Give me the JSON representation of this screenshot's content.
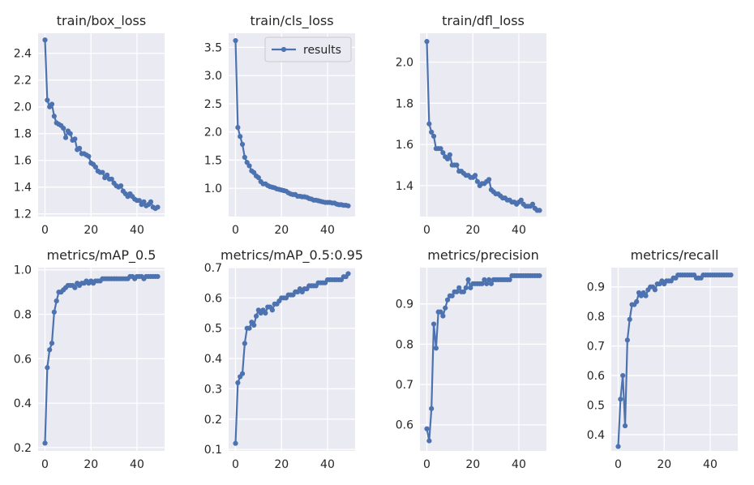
{
  "legend_label": "results",
  "colors": {
    "line": "#4c72b0",
    "panel_bg": "#eaeaf2",
    "grid": "#ffffff",
    "text": "#262626"
  },
  "chart_data": [
    {
      "type": "line",
      "title": "train/box_loss",
      "legend": false,
      "xlim": [
        -3,
        52
      ],
      "ylim": [
        1.18,
        2.55
      ],
      "xticks": [
        0,
        20,
        40
      ],
      "xtick_labels": [
        "0",
        "20",
        "40"
      ],
      "yticks": [
        1.2,
        1.4,
        1.6,
        1.8,
        2.0,
        2.2,
        2.4
      ],
      "ytick_labels": [
        "1.2",
        "1.4",
        "1.6",
        "1.8",
        "2.0",
        "2.2",
        "2.4"
      ],
      "series": [
        {
          "x": [
            0,
            1,
            2,
            3,
            4,
            5,
            6,
            7,
            8,
            9,
            10,
            11,
            12,
            13,
            14,
            15,
            16,
            17,
            18,
            19,
            20,
            21,
            22,
            23,
            24,
            25,
            26,
            27,
            28,
            29,
            30,
            31,
            32,
            33,
            34,
            35,
            36,
            37,
            38,
            39,
            40,
            41,
            42,
            43,
            44,
            45,
            46,
            47,
            48,
            49
          ],
          "y": [
            2.5,
            2.05,
            2.0,
            2.02,
            1.93,
            1.88,
            1.87,
            1.86,
            1.84,
            1.77,
            1.82,
            1.8,
            1.75,
            1.76,
            1.68,
            1.69,
            1.65,
            1.65,
            1.64,
            1.63,
            1.58,
            1.57,
            1.55,
            1.52,
            1.51,
            1.51,
            1.47,
            1.49,
            1.46,
            1.46,
            1.43,
            1.41,
            1.4,
            1.41,
            1.37,
            1.35,
            1.33,
            1.35,
            1.33,
            1.31,
            1.3,
            1.3,
            1.27,
            1.29,
            1.26,
            1.27,
            1.29,
            1.25,
            1.24,
            1.25
          ]
        }
      ]
    },
    {
      "type": "line",
      "title": "train/cls_loss",
      "legend": true,
      "xlim": [
        -3,
        52
      ],
      "ylim": [
        0.5,
        3.75
      ],
      "xticks": [
        0,
        20,
        40
      ],
      "xtick_labels": [
        "0",
        "20",
        "40"
      ],
      "yticks": [
        1.0,
        1.5,
        2.0,
        2.5,
        3.0,
        3.5
      ],
      "ytick_labels": [
        "1.0",
        "1.5",
        "2.0",
        "2.5",
        "3.0",
        "3.5"
      ],
      "series": [
        {
          "name": "results",
          "x": [
            0,
            1,
            2,
            3,
            4,
            5,
            6,
            7,
            8,
            9,
            10,
            11,
            12,
            13,
            14,
            15,
            16,
            17,
            18,
            19,
            20,
            21,
            22,
            23,
            24,
            25,
            26,
            27,
            28,
            29,
            30,
            31,
            32,
            33,
            34,
            35,
            36,
            37,
            38,
            39,
            40,
            41,
            42,
            43,
            44,
            45,
            46,
            47,
            48,
            49
          ],
          "y": [
            3.62,
            2.08,
            1.92,
            1.78,
            1.55,
            1.46,
            1.4,
            1.31,
            1.28,
            1.22,
            1.19,
            1.12,
            1.08,
            1.08,
            1.05,
            1.03,
            1.02,
            1.01,
            0.99,
            0.98,
            0.97,
            0.96,
            0.95,
            0.92,
            0.9,
            0.89,
            0.89,
            0.86,
            0.86,
            0.85,
            0.85,
            0.84,
            0.82,
            0.81,
            0.79,
            0.79,
            0.78,
            0.77,
            0.76,
            0.75,
            0.75,
            0.75,
            0.74,
            0.74,
            0.72,
            0.71,
            0.71,
            0.7,
            0.7,
            0.69
          ]
        }
      ]
    },
    {
      "type": "line",
      "title": "train/dfl_loss",
      "legend": false,
      "xlim": [
        -3,
        52
      ],
      "ylim": [
        1.25,
        2.14
      ],
      "xticks": [
        0,
        20,
        40
      ],
      "xtick_labels": [
        "0",
        "20",
        "40"
      ],
      "yticks": [
        1.4,
        1.6,
        1.8,
        2.0
      ],
      "ytick_labels": [
        "1.4",
        "1.6",
        "1.8",
        "2.0"
      ],
      "series": [
        {
          "x": [
            0,
            1,
            2,
            3,
            4,
            5,
            6,
            7,
            8,
            9,
            10,
            11,
            12,
            13,
            14,
            15,
            16,
            17,
            18,
            19,
            20,
            21,
            22,
            23,
            24,
            25,
            26,
            27,
            28,
            29,
            30,
            31,
            32,
            33,
            34,
            35,
            36,
            37,
            38,
            39,
            40,
            41,
            42,
            43,
            44,
            45,
            46,
            47,
            48,
            49
          ],
          "y": [
            2.1,
            1.7,
            1.66,
            1.64,
            1.58,
            1.58,
            1.58,
            1.56,
            1.54,
            1.53,
            1.55,
            1.5,
            1.5,
            1.5,
            1.47,
            1.47,
            1.46,
            1.45,
            1.45,
            1.44,
            1.44,
            1.45,
            1.42,
            1.4,
            1.41,
            1.41,
            1.42,
            1.43,
            1.38,
            1.37,
            1.36,
            1.36,
            1.35,
            1.34,
            1.34,
            1.33,
            1.33,
            1.32,
            1.32,
            1.31,
            1.32,
            1.33,
            1.31,
            1.3,
            1.3,
            1.3,
            1.31,
            1.29,
            1.28,
            1.28
          ]
        }
      ]
    },
    {
      "type": "line",
      "title": "metrics/mAP_0.5",
      "legend": false,
      "xlim": [
        -3,
        52
      ],
      "ylim": [
        0.185,
        1.01
      ],
      "xticks": [
        0,
        20,
        40
      ],
      "xtick_labels": [
        "0",
        "20",
        "40"
      ],
      "yticks": [
        0.2,
        0.4,
        0.6,
        0.8,
        1.0
      ],
      "ytick_labels": [
        "0.2",
        "0.4",
        "0.6",
        "0.8",
        "1.0"
      ],
      "series": [
        {
          "x": [
            0,
            1,
            2,
            3,
            4,
            5,
            6,
            7,
            8,
            9,
            10,
            11,
            12,
            13,
            14,
            15,
            16,
            17,
            18,
            19,
            20,
            21,
            22,
            23,
            24,
            25,
            26,
            27,
            28,
            29,
            30,
            31,
            32,
            33,
            34,
            35,
            36,
            37,
            38,
            39,
            40,
            41,
            42,
            43,
            44,
            45,
            46,
            47,
            48,
            49
          ],
          "y": [
            0.22,
            0.56,
            0.64,
            0.67,
            0.81,
            0.86,
            0.9,
            0.9,
            0.91,
            0.92,
            0.93,
            0.93,
            0.93,
            0.92,
            0.94,
            0.93,
            0.94,
            0.94,
            0.95,
            0.94,
            0.95,
            0.94,
            0.95,
            0.95,
            0.95,
            0.96,
            0.96,
            0.96,
            0.96,
            0.96,
            0.96,
            0.96,
            0.96,
            0.96,
            0.96,
            0.96,
            0.96,
            0.97,
            0.97,
            0.96,
            0.97,
            0.97,
            0.97,
            0.96,
            0.97,
            0.97,
            0.97,
            0.97,
            0.97,
            0.97
          ]
        }
      ]
    },
    {
      "type": "line",
      "title": "metrics/mAP_0.5:0.95",
      "legend": false,
      "xlim": [
        -3,
        52
      ],
      "ylim": [
        0.095,
        0.7
      ],
      "xticks": [
        0,
        20,
        40
      ],
      "xtick_labels": [
        "0",
        "20",
        "40"
      ],
      "yticks": [
        0.1,
        0.2,
        0.3,
        0.4,
        0.5,
        0.6,
        0.7
      ],
      "ytick_labels": [
        "0.1",
        "0.2",
        "0.3",
        "0.4",
        "0.5",
        "0.6",
        "0.7"
      ],
      "series": [
        {
          "x": [
            0,
            1,
            2,
            3,
            4,
            5,
            6,
            7,
            8,
            9,
            10,
            11,
            12,
            13,
            14,
            15,
            16,
            17,
            18,
            19,
            20,
            21,
            22,
            23,
            24,
            25,
            26,
            27,
            28,
            29,
            30,
            31,
            32,
            33,
            34,
            35,
            36,
            37,
            38,
            39,
            40,
            41,
            42,
            43,
            44,
            45,
            46,
            47,
            48,
            49
          ],
          "y": [
            0.12,
            0.32,
            0.34,
            0.35,
            0.45,
            0.5,
            0.5,
            0.52,
            0.51,
            0.54,
            0.56,
            0.55,
            0.56,
            0.55,
            0.57,
            0.57,
            0.56,
            0.58,
            0.58,
            0.59,
            0.6,
            0.6,
            0.6,
            0.61,
            0.61,
            0.61,
            0.62,
            0.62,
            0.63,
            0.62,
            0.63,
            0.63,
            0.64,
            0.64,
            0.64,
            0.64,
            0.65,
            0.65,
            0.65,
            0.65,
            0.66,
            0.66,
            0.66,
            0.66,
            0.66,
            0.66,
            0.66,
            0.67,
            0.67,
            0.68
          ]
        }
      ]
    },
    {
      "type": "line",
      "title": "metrics/precision",
      "legend": false,
      "xlim": [
        -3,
        52
      ],
      "ylim": [
        0.535,
        0.99
      ],
      "xticks": [
        0,
        20,
        40
      ],
      "xtick_labels": [
        "0",
        "20",
        "40"
      ],
      "yticks": [
        0.6,
        0.7,
        0.8,
        0.9
      ],
      "ytick_labels": [
        "0.6",
        "0.7",
        "0.8",
        "0.9"
      ],
      "series": [
        {
          "x": [
            0,
            1,
            2,
            3,
            4,
            5,
            6,
            7,
            8,
            9,
            10,
            11,
            12,
            13,
            14,
            15,
            16,
            17,
            18,
            19,
            20,
            21,
            22,
            23,
            24,
            25,
            26,
            27,
            28,
            29,
            30,
            31,
            32,
            33,
            34,
            35,
            36,
            37,
            38,
            39,
            40,
            41,
            42,
            43,
            44,
            45,
            46,
            47,
            48,
            49
          ],
          "y": [
            0.59,
            0.56,
            0.64,
            0.85,
            0.79,
            0.88,
            0.88,
            0.87,
            0.89,
            0.91,
            0.92,
            0.92,
            0.93,
            0.93,
            0.94,
            0.93,
            0.93,
            0.94,
            0.96,
            0.94,
            0.95,
            0.95,
            0.95,
            0.95,
            0.95,
            0.96,
            0.95,
            0.96,
            0.95,
            0.96,
            0.96,
            0.96,
            0.96,
            0.96,
            0.96,
            0.96,
            0.96,
            0.97,
            0.97,
            0.97,
            0.97,
            0.97,
            0.97,
            0.97,
            0.97,
            0.97,
            0.97,
            0.97,
            0.97,
            0.97
          ]
        }
      ]
    },
    {
      "type": "line",
      "title": "metrics/recall",
      "legend": false,
      "xlim": [
        -3,
        52
      ],
      "ylim": [
        0.345,
        0.965
      ],
      "xticks": [
        0,
        20,
        40
      ],
      "xtick_labels": [
        "0",
        "20",
        "40"
      ],
      "yticks": [
        0.4,
        0.5,
        0.6,
        0.7,
        0.8,
        0.9
      ],
      "ytick_labels": [
        "0.4",
        "0.5",
        "0.6",
        "0.7",
        "0.8",
        "0.9"
      ],
      "series": [
        {
          "x": [
            0,
            1,
            2,
            3,
            4,
            5,
            6,
            7,
            8,
            9,
            10,
            11,
            12,
            13,
            14,
            15,
            16,
            17,
            18,
            19,
            20,
            21,
            22,
            23,
            24,
            25,
            26,
            27,
            28,
            29,
            30,
            31,
            32,
            33,
            34,
            35,
            36,
            37,
            38,
            39,
            40,
            41,
            42,
            43,
            44,
            45,
            46,
            47,
            48,
            49
          ],
          "y": [
            0.36,
            0.52,
            0.6,
            0.43,
            0.72,
            0.79,
            0.84,
            0.84,
            0.85,
            0.88,
            0.87,
            0.88,
            0.87,
            0.89,
            0.9,
            0.9,
            0.89,
            0.91,
            0.91,
            0.92,
            0.91,
            0.92,
            0.92,
            0.92,
            0.93,
            0.93,
            0.94,
            0.94,
            0.94,
            0.94,
            0.94,
            0.94,
            0.94,
            0.94,
            0.93,
            0.93,
            0.93,
            0.94,
            0.94,
            0.94,
            0.94,
            0.94,
            0.94,
            0.94,
            0.94,
            0.94,
            0.94,
            0.94,
            0.94,
            0.94
          ]
        }
      ]
    }
  ]
}
